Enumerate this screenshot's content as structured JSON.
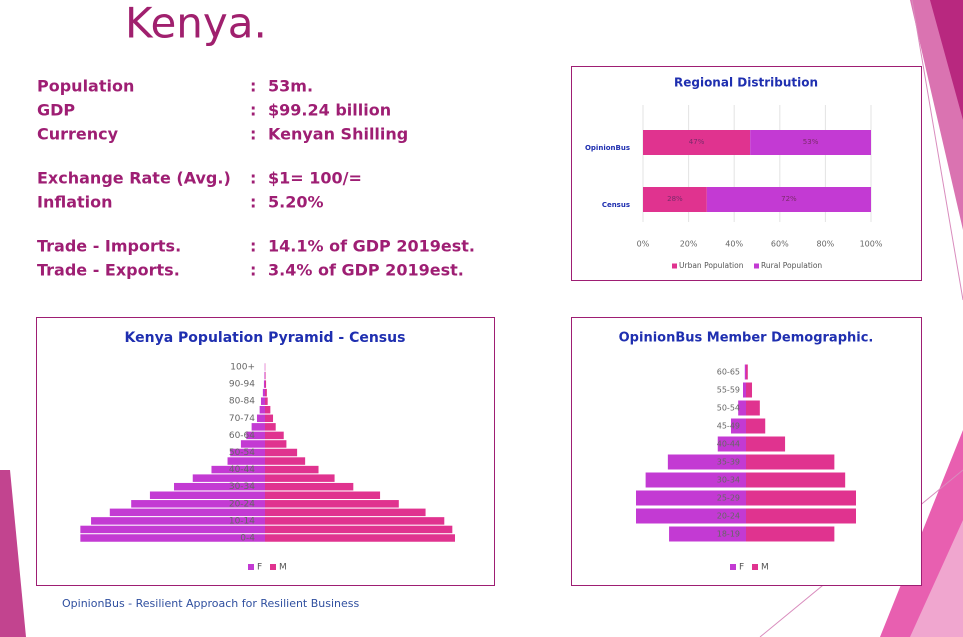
{
  "header": {
    "title": "Kenya."
  },
  "facts": {
    "separator": ":",
    "rows": [
      {
        "label": "Population",
        "value": "53m."
      },
      {
        "label": "GDP",
        "value": "$99.24 billion"
      },
      {
        "label": "Currency",
        "value": "Kenyan Shilling"
      },
      {
        "label": "Exchange Rate (Avg.)",
        "value": "$1= 100/="
      },
      {
        "label": "Inflation",
        "value": "5.20%"
      },
      {
        "label": "Trade - Imports.",
        "value": "14.1% of GDP 2019est."
      },
      {
        "label": "Trade - Exports.",
        "value": "3.4% of GDP 2019est."
      }
    ]
  },
  "chart_data": [
    {
      "type": "bar",
      "orientation": "horizontal",
      "stacked": true,
      "title": "Regional Distribution",
      "categories": [
        "OpinionBus",
        "Census"
      ],
      "series": [
        {
          "name": "Urban Population",
          "color": "#e0338f",
          "values": [
            47,
            28
          ],
          "value_labels": [
            "47%",
            "28%"
          ]
        },
        {
          "name": "Rural Population",
          "color": "#c33ad3",
          "values": [
            53,
            72
          ],
          "value_labels": [
            "53%",
            "72%"
          ]
        }
      ],
      "xlim": [
        0,
        100
      ],
      "xticks": [
        {
          "value": 0,
          "label": "0%"
        },
        {
          "value": 20,
          "label": "20%"
        },
        {
          "value": 40,
          "label": "40%"
        },
        {
          "value": 60,
          "label": "60%"
        },
        {
          "value": 80,
          "label": "80%"
        },
        {
          "value": 100,
          "label": "100%"
        }
      ],
      "grid": true
    },
    {
      "type": "pyramid",
      "title": "Kenya Population Pyramid - Census",
      "categories": [
        "0-4",
        null,
        "10-14",
        null,
        "20-24",
        null,
        "30-34",
        null,
        "40-44",
        null,
        "50-54",
        null,
        "60-64",
        null,
        "70-74",
        null,
        "80-84",
        null,
        "90-94",
        null,
        "100+"
      ],
      "series": [
        {
          "name": "F",
          "color": "#c33ad3",
          "values": [
            6.9,
            6.9,
            6.5,
            5.8,
            5.0,
            4.3,
            3.4,
            2.7,
            2.0,
            1.4,
            1.3,
            0.9,
            0.7,
            0.5,
            0.3,
            0.2,
            0.15,
            0.08,
            0.04,
            0.02,
            0.01
          ]
        },
        {
          "name": "M",
          "color": "#e0338f",
          "values": [
            7.1,
            7.0,
            6.7,
            6.0,
            5.0,
            4.3,
            3.3,
            2.6,
            2.0,
            1.5,
            1.2,
            0.8,
            0.7,
            0.4,
            0.3,
            0.2,
            0.1,
            0.07,
            0.04,
            0.02,
            0.01
          ]
        }
      ]
    },
    {
      "type": "pyramid",
      "title": "OpinionBus Member Demographic.",
      "categories": [
        "18-19",
        "20-24",
        "25-29",
        "30-34",
        "35-39",
        "40-44",
        "45-49",
        "50-54",
        "55-59",
        "60-65"
      ],
      "series": [
        {
          "name": "F",
          "color": "#c33ad3",
          "values": [
            12.8,
            18.3,
            18.3,
            16.7,
            13.0,
            4.7,
            2.5,
            1.3,
            0.5,
            0.2
          ]
        },
        {
          "name": "M",
          "color": "#e0338f",
          "values": [
            14.7,
            18.3,
            18.3,
            16.5,
            14.7,
            6.5,
            3.2,
            2.3,
            1.0,
            0.3
          ]
        }
      ]
    }
  ],
  "footer": "OpinionBus - Resilient Approach for Resilient Business"
}
